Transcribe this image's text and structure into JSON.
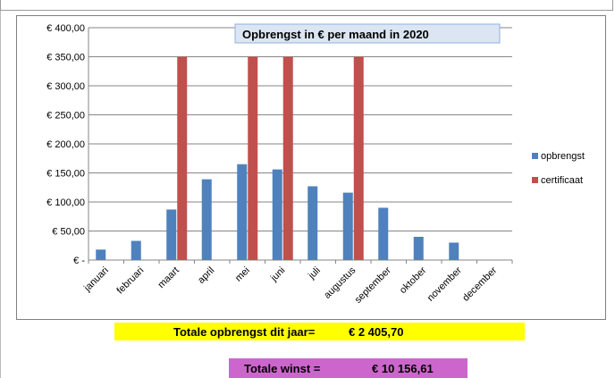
{
  "chart_data": {
    "type": "bar",
    "title": "Opbrengst in € per maand in 2020",
    "categories": [
      "januari",
      "februari",
      "maart",
      "april",
      "mei",
      "juni",
      "juli",
      "augustus",
      "september",
      "oktober",
      "november",
      "december"
    ],
    "series": [
      {
        "name": "opbrengst",
        "color": "#4f81bd",
        "values": [
          18,
          33,
          87,
          139,
          165,
          156,
          127,
          116,
          90,
          40,
          30,
          0
        ]
      },
      {
        "name": "certificaat",
        "color": "#c0504d",
        "values": [
          0,
          0,
          350,
          0,
          350,
          350,
          0,
          350,
          0,
          0,
          0,
          0
        ]
      }
    ],
    "ylim": [
      0,
      400
    ],
    "yticks": [
      0,
      50,
      100,
      150,
      200,
      250,
      300,
      350,
      400
    ],
    "ytick_labels": [
      "€ -",
      "€ 50,00",
      "€ 100,00",
      "€ 150,00",
      "€ 200,00",
      "€ 250,00",
      "€ 300,00",
      "€ 350,00",
      "€ 400,00"
    ],
    "grid": true,
    "legend_position": "right"
  },
  "totals": {
    "revenue_label": "Totale opbrengst dit jaar=",
    "revenue_value": "€ 2 405,70",
    "revenue_color": "#ffff00",
    "profit_label": "Totale winst =",
    "profit_value": "€ 10 156,61",
    "profit_color": "#cc66cc"
  }
}
